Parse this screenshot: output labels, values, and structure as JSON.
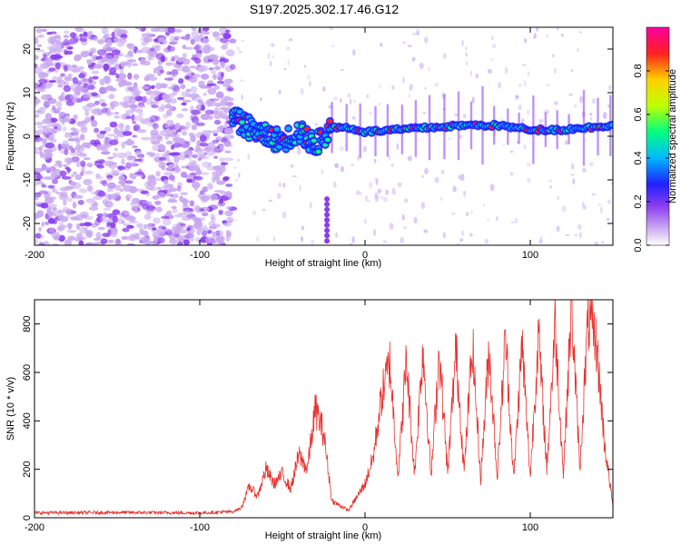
{
  "chart_data": [
    {
      "type": "heatmap",
      "title": "S197.2025.302.17.46.G12",
      "xlabel": "Height of straight line (km)",
      "ylabel": "Frequency (Hz)",
      "xlim": [
        -200,
        150
      ],
      "ylim": [
        -25,
        25
      ],
      "x_ticks": [
        -200,
        -100,
        0,
        100
      ],
      "y_ticks": [
        -20,
        -10,
        0,
        10,
        20
      ],
      "colorbar": {
        "label": "Normalized spectral amplitude",
        "range": [
          0,
          1
        ],
        "ticks": [
          "0.0",
          "0.2",
          "0.4",
          "0.6",
          "0.8"
        ]
      },
      "signal_track": {
        "x": [
          -80,
          -70,
          -60,
          -50,
          -40,
          -30,
          -20,
          -10,
          0,
          20,
          40,
          60,
          80,
          100,
          120,
          150
        ],
        "y": [
          4,
          2,
          0,
          -1,
          1,
          -2,
          2,
          2,
          1,
          1.5,
          2,
          2.5,
          2.5,
          1.5,
          1.5,
          2.5
        ]
      },
      "noise_region_x": [
        -200,
        -80
      ]
    },
    {
      "type": "line",
      "xlabel": "Height of straight line (km)",
      "ylabel": "SNR (10 * v/v)",
      "xlim": [
        -200,
        150
      ],
      "ylim": [
        0,
        900
      ],
      "x_ticks": [
        -200,
        -100,
        0,
        100
      ],
      "y_ticks": [
        0,
        200,
        400,
        600,
        800
      ],
      "series": [
        {
          "name": "SNR",
          "color": "#e8312e",
          "x": [
            -200,
            -150,
            -100,
            -80,
            -75,
            -70,
            -65,
            -60,
            -55,
            -50,
            -45,
            -40,
            -35,
            -30,
            -25,
            -20,
            -10,
            0,
            5,
            10,
            15,
            20,
            25,
            30,
            35,
            40,
            45,
            50,
            55,
            60,
            65,
            70,
            75,
            80,
            85,
            90,
            95,
            100,
            105,
            110,
            115,
            120,
            125,
            130,
            135,
            140,
            145,
            150
          ],
          "values": [
            20,
            22,
            20,
            25,
            40,
            130,
            90,
            200,
            140,
            180,
            120,
            260,
            200,
            450,
            350,
            70,
            30,
            140,
            250,
            500,
            640,
            170,
            650,
            180,
            700,
            170,
            690,
            180,
            700,
            190,
            720,
            160,
            700,
            170,
            750,
            160,
            720,
            170,
            760,
            200,
            800,
            180,
            880,
            200,
            820,
            720,
            300,
            50
          ]
        }
      ]
    }
  ],
  "colors": {
    "colormap": [
      "#ffffff",
      "#c8a8f0",
      "#8a3cf0",
      "#2020ff",
      "#00b8ff",
      "#00ff80",
      "#c0ff00",
      "#ffd000",
      "#ff2020",
      "#ff00a0"
    ],
    "snr_line": "#e8312e"
  }
}
